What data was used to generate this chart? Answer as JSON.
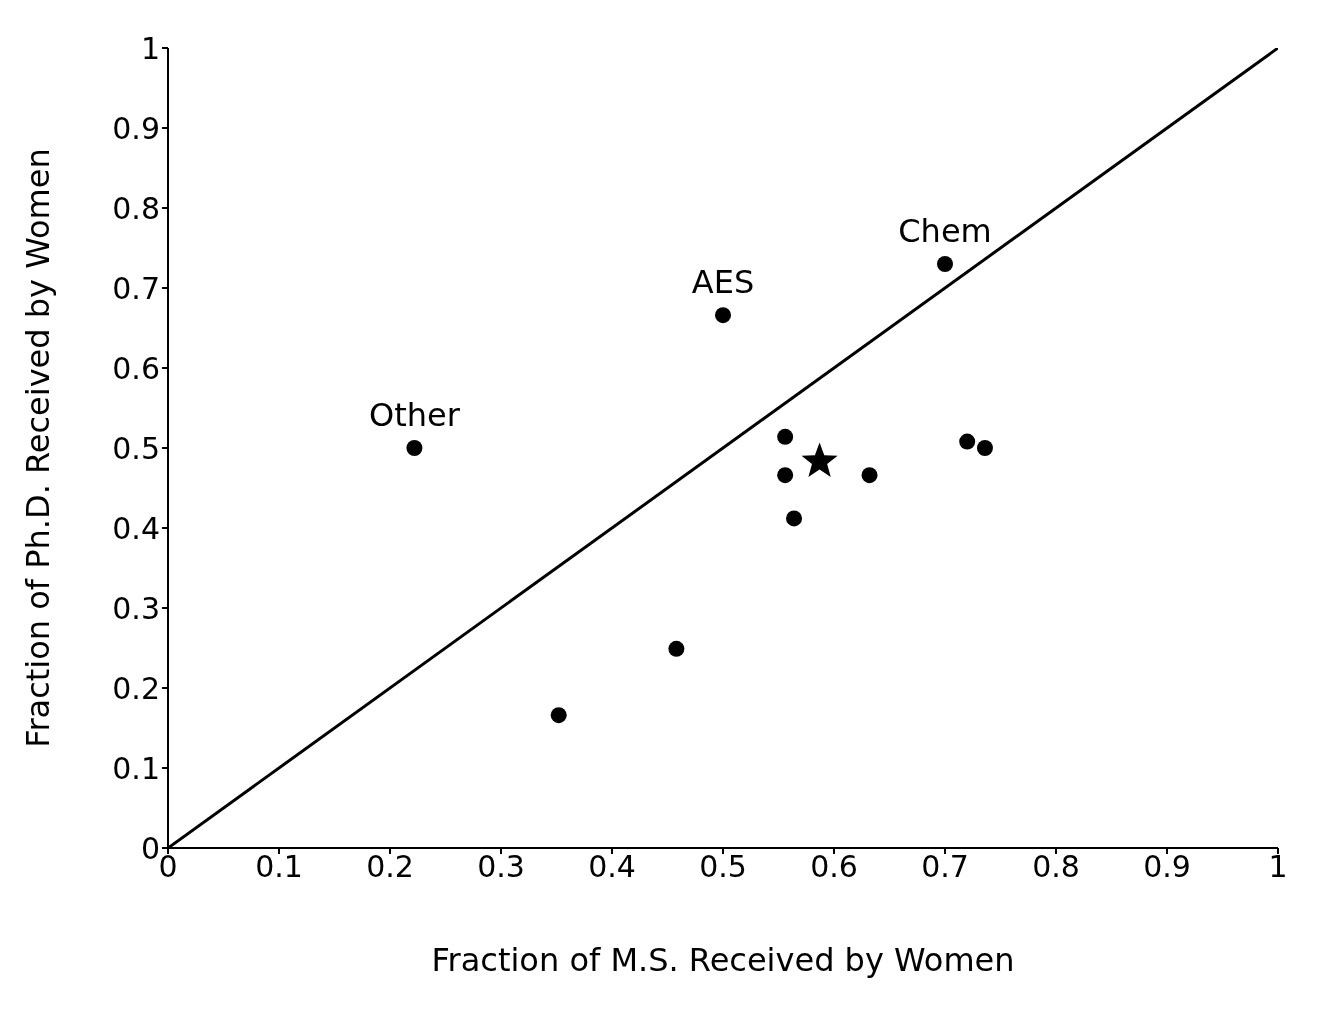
{
  "chart_data": {
    "type": "scatter",
    "xlabel": "Fraction of M.S. Received by Women",
    "ylabel": "Fraction of Ph.D. Received by Women",
    "xlim": [
      0,
      1
    ],
    "ylim": [
      0,
      1
    ],
    "xticks": [
      0,
      0.1,
      0.2,
      0.3,
      0.4,
      0.5,
      0.6,
      0.7,
      0.8,
      0.9,
      1
    ],
    "yticks": [
      0,
      0.1,
      0.2,
      0.3,
      0.4,
      0.5,
      0.6,
      0.7,
      0.8,
      0.9,
      1
    ],
    "grid": false,
    "legend": false,
    "series": [
      {
        "type": "line",
        "color": "#000000",
        "marker": "none",
        "line_style": "solid",
        "x": [
          0,
          1
        ],
        "values": [
          0,
          1
        ]
      },
      {
        "type": "scatter",
        "color": "#000000",
        "marker": "circle",
        "x": [
          0.222,
          0.5,
          0.7,
          0.556,
          0.556,
          0.564,
          0.632,
          0.72,
          0.736,
          0.458,
          0.352
        ],
        "values": [
          0.5,
          0.666,
          0.73,
          0.514,
          0.466,
          0.412,
          0.466,
          0.508,
          0.5,
          0.249,
          0.166
        ]
      },
      {
        "type": "scatter",
        "color": "#000000",
        "marker": "star",
        "x": [
          0.587
        ],
        "values": [
          0.483
        ]
      }
    ],
    "annotations": [
      {
        "text": "Other",
        "x": 0.222,
        "y": 0.5
      },
      {
        "text": "AES",
        "x": 0.5,
        "y": 0.666
      },
      {
        "text": "Chem",
        "x": 0.7,
        "y": 0.73
      }
    ]
  }
}
